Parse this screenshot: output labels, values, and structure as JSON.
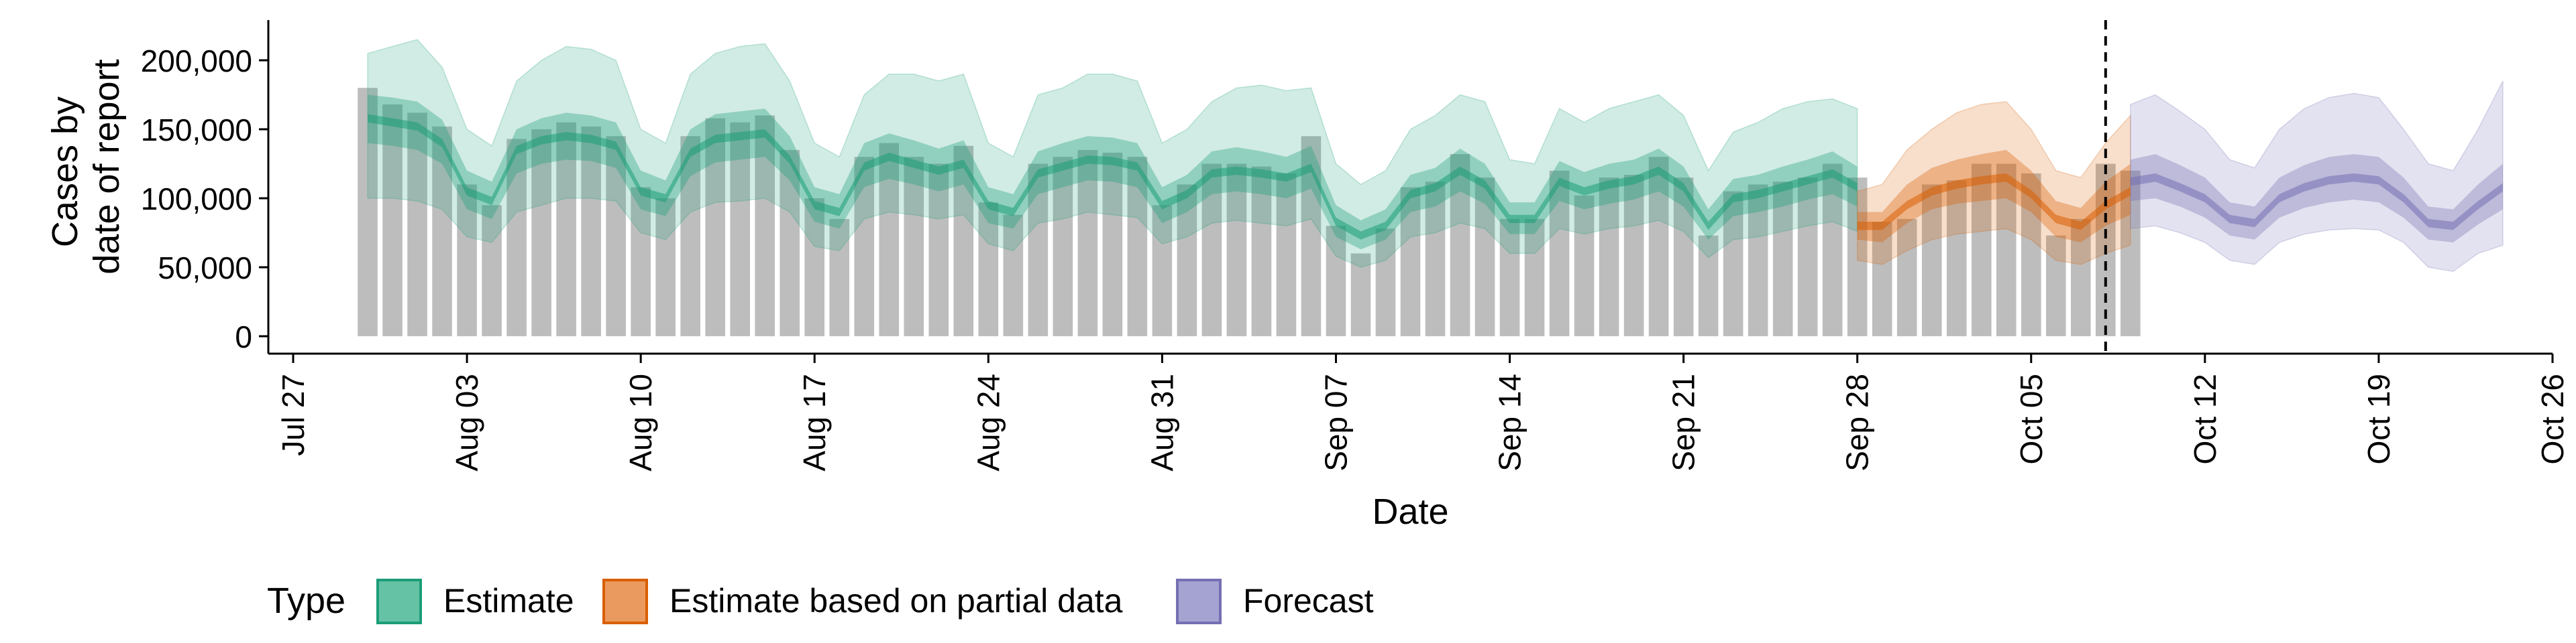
{
  "chart_data": {
    "type": "bar",
    "xlabel": "Date",
    "ylabel_lines": [
      "Cases by",
      "date of report"
    ],
    "ylim": [
      0,
      230000
    ],
    "y_ticks": [
      0,
      50000,
      100000,
      150000,
      200000
    ],
    "y_tick_labels": [
      "0",
      "50,000",
      "100,000",
      "150,000",
      "200,000"
    ],
    "x_range": [
      "2020-07-26",
      "2020-10-26"
    ],
    "x_ticks": [
      "2020-07-27",
      "2020-08-03",
      "2020-08-10",
      "2020-08-17",
      "2020-08-24",
      "2020-08-31",
      "2020-09-07",
      "2020-09-14",
      "2020-09-21",
      "2020-09-28",
      "2020-10-05",
      "2020-10-12",
      "2020-10-19",
      "2020-10-26"
    ],
    "x_tick_labels": [
      "Jul 27",
      "Aug 03",
      "Aug 10",
      "Aug 17",
      "Aug 24",
      "Aug 31",
      "Sep 07",
      "Sep 14",
      "Sep 21",
      "Sep 28",
      "Oct 05",
      "Oct 12",
      "Oct 19",
      "Oct 26"
    ],
    "forecast_cutoff": "2020-10-08",
    "legend": {
      "title": "Type",
      "position": "bottom",
      "entries": [
        {
          "label": "Estimate",
          "fill": "#66c2a5",
          "stroke": "#1b9e77"
        },
        {
          "label": "Estimate based on partial data",
          "fill": "#eb9a5f",
          "stroke": "#d95f02"
        },
        {
          "label": "Forecast",
          "fill": "#a5a3d1",
          "stroke": "#7570b3"
        }
      ]
    },
    "colors": {
      "bars": "#bdbdbd",
      "estimate": "#1b9e77",
      "partial": "#d95f02",
      "forecast": "#7570b3",
      "cutoff_line": "#000000"
    },
    "bars": {
      "start_date": "2020-07-30",
      "values": [
        180000,
        168000,
        162000,
        152000,
        110000,
        95000,
        143000,
        150000,
        155000,
        152000,
        145000,
        108000,
        100000,
        145000,
        158000,
        155000,
        160000,
        135000,
        100000,
        85000,
        130000,
        140000,
        130000,
        125000,
        138000,
        97000,
        88000,
        125000,
        130000,
        135000,
        133000,
        130000,
        95000,
        110000,
        125000,
        125000,
        123000,
        118000,
        145000,
        80000,
        60000,
        78000,
        108000,
        112000,
        132000,
        115000,
        85000,
        85000,
        120000,
        102000,
        115000,
        117000,
        130000,
        115000,
        73000,
        105000,
        110000,
        112000,
        115000,
        125000,
        115000,
        83000,
        85000,
        110000,
        113000,
        125000,
        125000,
        118000,
        73000,
        85000,
        125000,
        120000
      ]
    },
    "series": [
      {
        "name": "Estimate",
        "start_date": "2020-07-30",
        "median": [
          158000,
          155000,
          152000,
          140000,
          105000,
          98000,
          135000,
          142000,
          145000,
          143000,
          138000,
          105000,
          100000,
          133000,
          143000,
          145000,
          147000,
          128000,
          95000,
          90000,
          123000,
          130000,
          125000,
          120000,
          125000,
          95000,
          90000,
          118000,
          123000,
          128000,
          127000,
          123000,
          95000,
          103000,
          118000,
          120000,
          118000,
          115000,
          122000,
          83000,
          73000,
          80000,
          103000,
          108000,
          120000,
          110000,
          85000,
          85000,
          112000,
          105000,
          110000,
          113000,
          120000,
          108000,
          80000,
          100000,
          103000,
          108000,
          113000,
          118000,
          108000
        ],
        "q50": [
          [
            140000,
            175000
          ],
          [
            138000,
            173000
          ],
          [
            135000,
            170000
          ],
          [
            125000,
            157000
          ],
          [
            92000,
            120000
          ],
          [
            85000,
            112000
          ],
          [
            118000,
            150000
          ],
          [
            125000,
            158000
          ],
          [
            128000,
            162000
          ],
          [
            127000,
            160000
          ],
          [
            122000,
            155000
          ],
          [
            92000,
            120000
          ],
          [
            87000,
            113000
          ],
          [
            116000,
            150000
          ],
          [
            126000,
            161000
          ],
          [
            128000,
            163000
          ],
          [
            130000,
            165000
          ],
          [
            113000,
            145000
          ],
          [
            83000,
            108000
          ],
          [
            78000,
            103000
          ],
          [
            108000,
            140000
          ],
          [
            114000,
            147000
          ],
          [
            110000,
            142000
          ],
          [
            105000,
            136000
          ],
          [
            110000,
            142000
          ],
          [
            82000,
            108000
          ],
          [
            78000,
            103000
          ],
          [
            103000,
            134000
          ],
          [
            108000,
            140000
          ],
          [
            113000,
            145000
          ],
          [
            112000,
            144000
          ],
          [
            108000,
            140000
          ],
          [
            82000,
            108000
          ],
          [
            90000,
            117000
          ],
          [
            103000,
            134000
          ],
          [
            105000,
            137000
          ],
          [
            103000,
            134000
          ],
          [
            100000,
            130000
          ],
          [
            107000,
            138000
          ],
          [
            72000,
            95000
          ],
          [
            63000,
            84000
          ],
          [
            70000,
            92000
          ],
          [
            90000,
            117000
          ],
          [
            94000,
            122000
          ],
          [
            105000,
            136000
          ],
          [
            96000,
            125000
          ],
          [
            74000,
            97000
          ],
          [
            74000,
            97000
          ],
          [
            98000,
            127000
          ],
          [
            92000,
            119000
          ],
          [
            96000,
            125000
          ],
          [
            99000,
            128000
          ],
          [
            105000,
            136000
          ],
          [
            94000,
            123000
          ],
          [
            70000,
            92000
          ],
          [
            87000,
            114000
          ],
          [
            90000,
            117000
          ],
          [
            94000,
            123000
          ],
          [
            99000,
            128000
          ],
          [
            103000,
            134000
          ],
          [
            94000,
            123000
          ]
        ],
        "q90": [
          [
            100000,
            205000
          ],
          [
            100000,
            210000
          ],
          [
            98000,
            215000
          ],
          [
            92000,
            195000
          ],
          [
            72000,
            150000
          ],
          [
            68000,
            138000
          ],
          [
            90000,
            185000
          ],
          [
            95000,
            200000
          ],
          [
            100000,
            210000
          ],
          [
            100000,
            208000
          ],
          [
            98000,
            200000
          ],
          [
            75000,
            150000
          ],
          [
            70000,
            140000
          ],
          [
            90000,
            190000
          ],
          [
            97000,
            205000
          ],
          [
            98000,
            210000
          ],
          [
            100000,
            212000
          ],
          [
            90000,
            185000
          ],
          [
            65000,
            140000
          ],
          [
            62000,
            130000
          ],
          [
            85000,
            175000
          ],
          [
            90000,
            190000
          ],
          [
            88000,
            190000
          ],
          [
            85000,
            185000
          ],
          [
            88000,
            190000
          ],
          [
            67000,
            140000
          ],
          [
            62000,
            130000
          ],
          [
            82000,
            175000
          ],
          [
            85000,
            180000
          ],
          [
            90000,
            190000
          ],
          [
            88000,
            190000
          ],
          [
            86000,
            185000
          ],
          [
            67000,
            140000
          ],
          [
            72000,
            150000
          ],
          [
            82000,
            170000
          ],
          [
            84000,
            180000
          ],
          [
            82000,
            182000
          ],
          [
            80000,
            178000
          ],
          [
            85000,
            180000
          ],
          [
            58000,
            125000
          ],
          [
            50000,
            110000
          ],
          [
            55000,
            120000
          ],
          [
            72000,
            150000
          ],
          [
            75000,
            160000
          ],
          [
            82000,
            175000
          ],
          [
            78000,
            170000
          ],
          [
            60000,
            128000
          ],
          [
            60000,
            125000
          ],
          [
            78000,
            165000
          ],
          [
            74000,
            155000
          ],
          [
            78000,
            165000
          ],
          [
            80000,
            170000
          ],
          [
            84000,
            175000
          ],
          [
            76000,
            160000
          ],
          [
            57000,
            120000
          ],
          [
            70000,
            148000
          ],
          [
            72000,
            155000
          ],
          [
            76000,
            165000
          ],
          [
            80000,
            170000
          ],
          [
            83000,
            172000
          ],
          [
            76000,
            165000
          ]
        ]
      },
      {
        "name": "Estimate based on partial data",
        "start_date": "2020-09-28",
        "median": [
          80000,
          80000,
          95000,
          105000,
          110000,
          113000,
          115000,
          103000,
          85000,
          80000,
          95000,
          105000
        ],
        "q50": [
          [
            70000,
            90000
          ],
          [
            68000,
            90000
          ],
          [
            82000,
            110000
          ],
          [
            92000,
            122000
          ],
          [
            96000,
            128000
          ],
          [
            98000,
            132000
          ],
          [
            100000,
            135000
          ],
          [
            90000,
            120000
          ],
          [
            72000,
            98000
          ],
          [
            68000,
            93000
          ],
          [
            80000,
            112000
          ],
          [
            88000,
            125000
          ]
        ],
        "q90": [
          [
            55000,
            105000
          ],
          [
            52000,
            110000
          ],
          [
            62000,
            135000
          ],
          [
            70000,
            150000
          ],
          [
            74000,
            162000
          ],
          [
            76000,
            168000
          ],
          [
            78000,
            170000
          ],
          [
            70000,
            150000
          ],
          [
            55000,
            120000
          ],
          [
            52000,
            115000
          ],
          [
            60000,
            140000
          ],
          [
            66000,
            160000
          ]
        ]
      },
      {
        "name": "Forecast",
        "start_date": "2020-10-09",
        "median": [
          112000,
          115000,
          108000,
          100000,
          85000,
          82000,
          100000,
          108000,
          113000,
          115000,
          113000,
          100000,
          82000,
          80000,
          95000,
          108000
        ],
        "q50": [
          [
            98000,
            128000
          ],
          [
            100000,
            132000
          ],
          [
            94000,
            124000
          ],
          [
            86000,
            115000
          ],
          [
            73000,
            97000
          ],
          [
            70000,
            94000
          ],
          [
            86000,
            115000
          ],
          [
            93000,
            124000
          ],
          [
            97000,
            130000
          ],
          [
            99000,
            132000
          ],
          [
            97000,
            130000
          ],
          [
            86000,
            115000
          ],
          [
            70000,
            94000
          ],
          [
            68000,
            92000
          ],
          [
            81000,
            110000
          ],
          [
            92000,
            125000
          ]
        ],
        "q90": [
          [
            78000,
            168000
          ],
          [
            80000,
            175000
          ],
          [
            75000,
            163000
          ],
          [
            68000,
            150000
          ],
          [
            55000,
            128000
          ],
          [
            52000,
            122000
          ],
          [
            68000,
            150000
          ],
          [
            74000,
            165000
          ],
          [
            77000,
            173000
          ],
          [
            78000,
            176000
          ],
          [
            77000,
            173000
          ],
          [
            68000,
            150000
          ],
          [
            50000,
            125000
          ],
          [
            47000,
            120000
          ],
          [
            60000,
            150000
          ],
          [
            66000,
            185000
          ]
        ]
      }
    ]
  }
}
